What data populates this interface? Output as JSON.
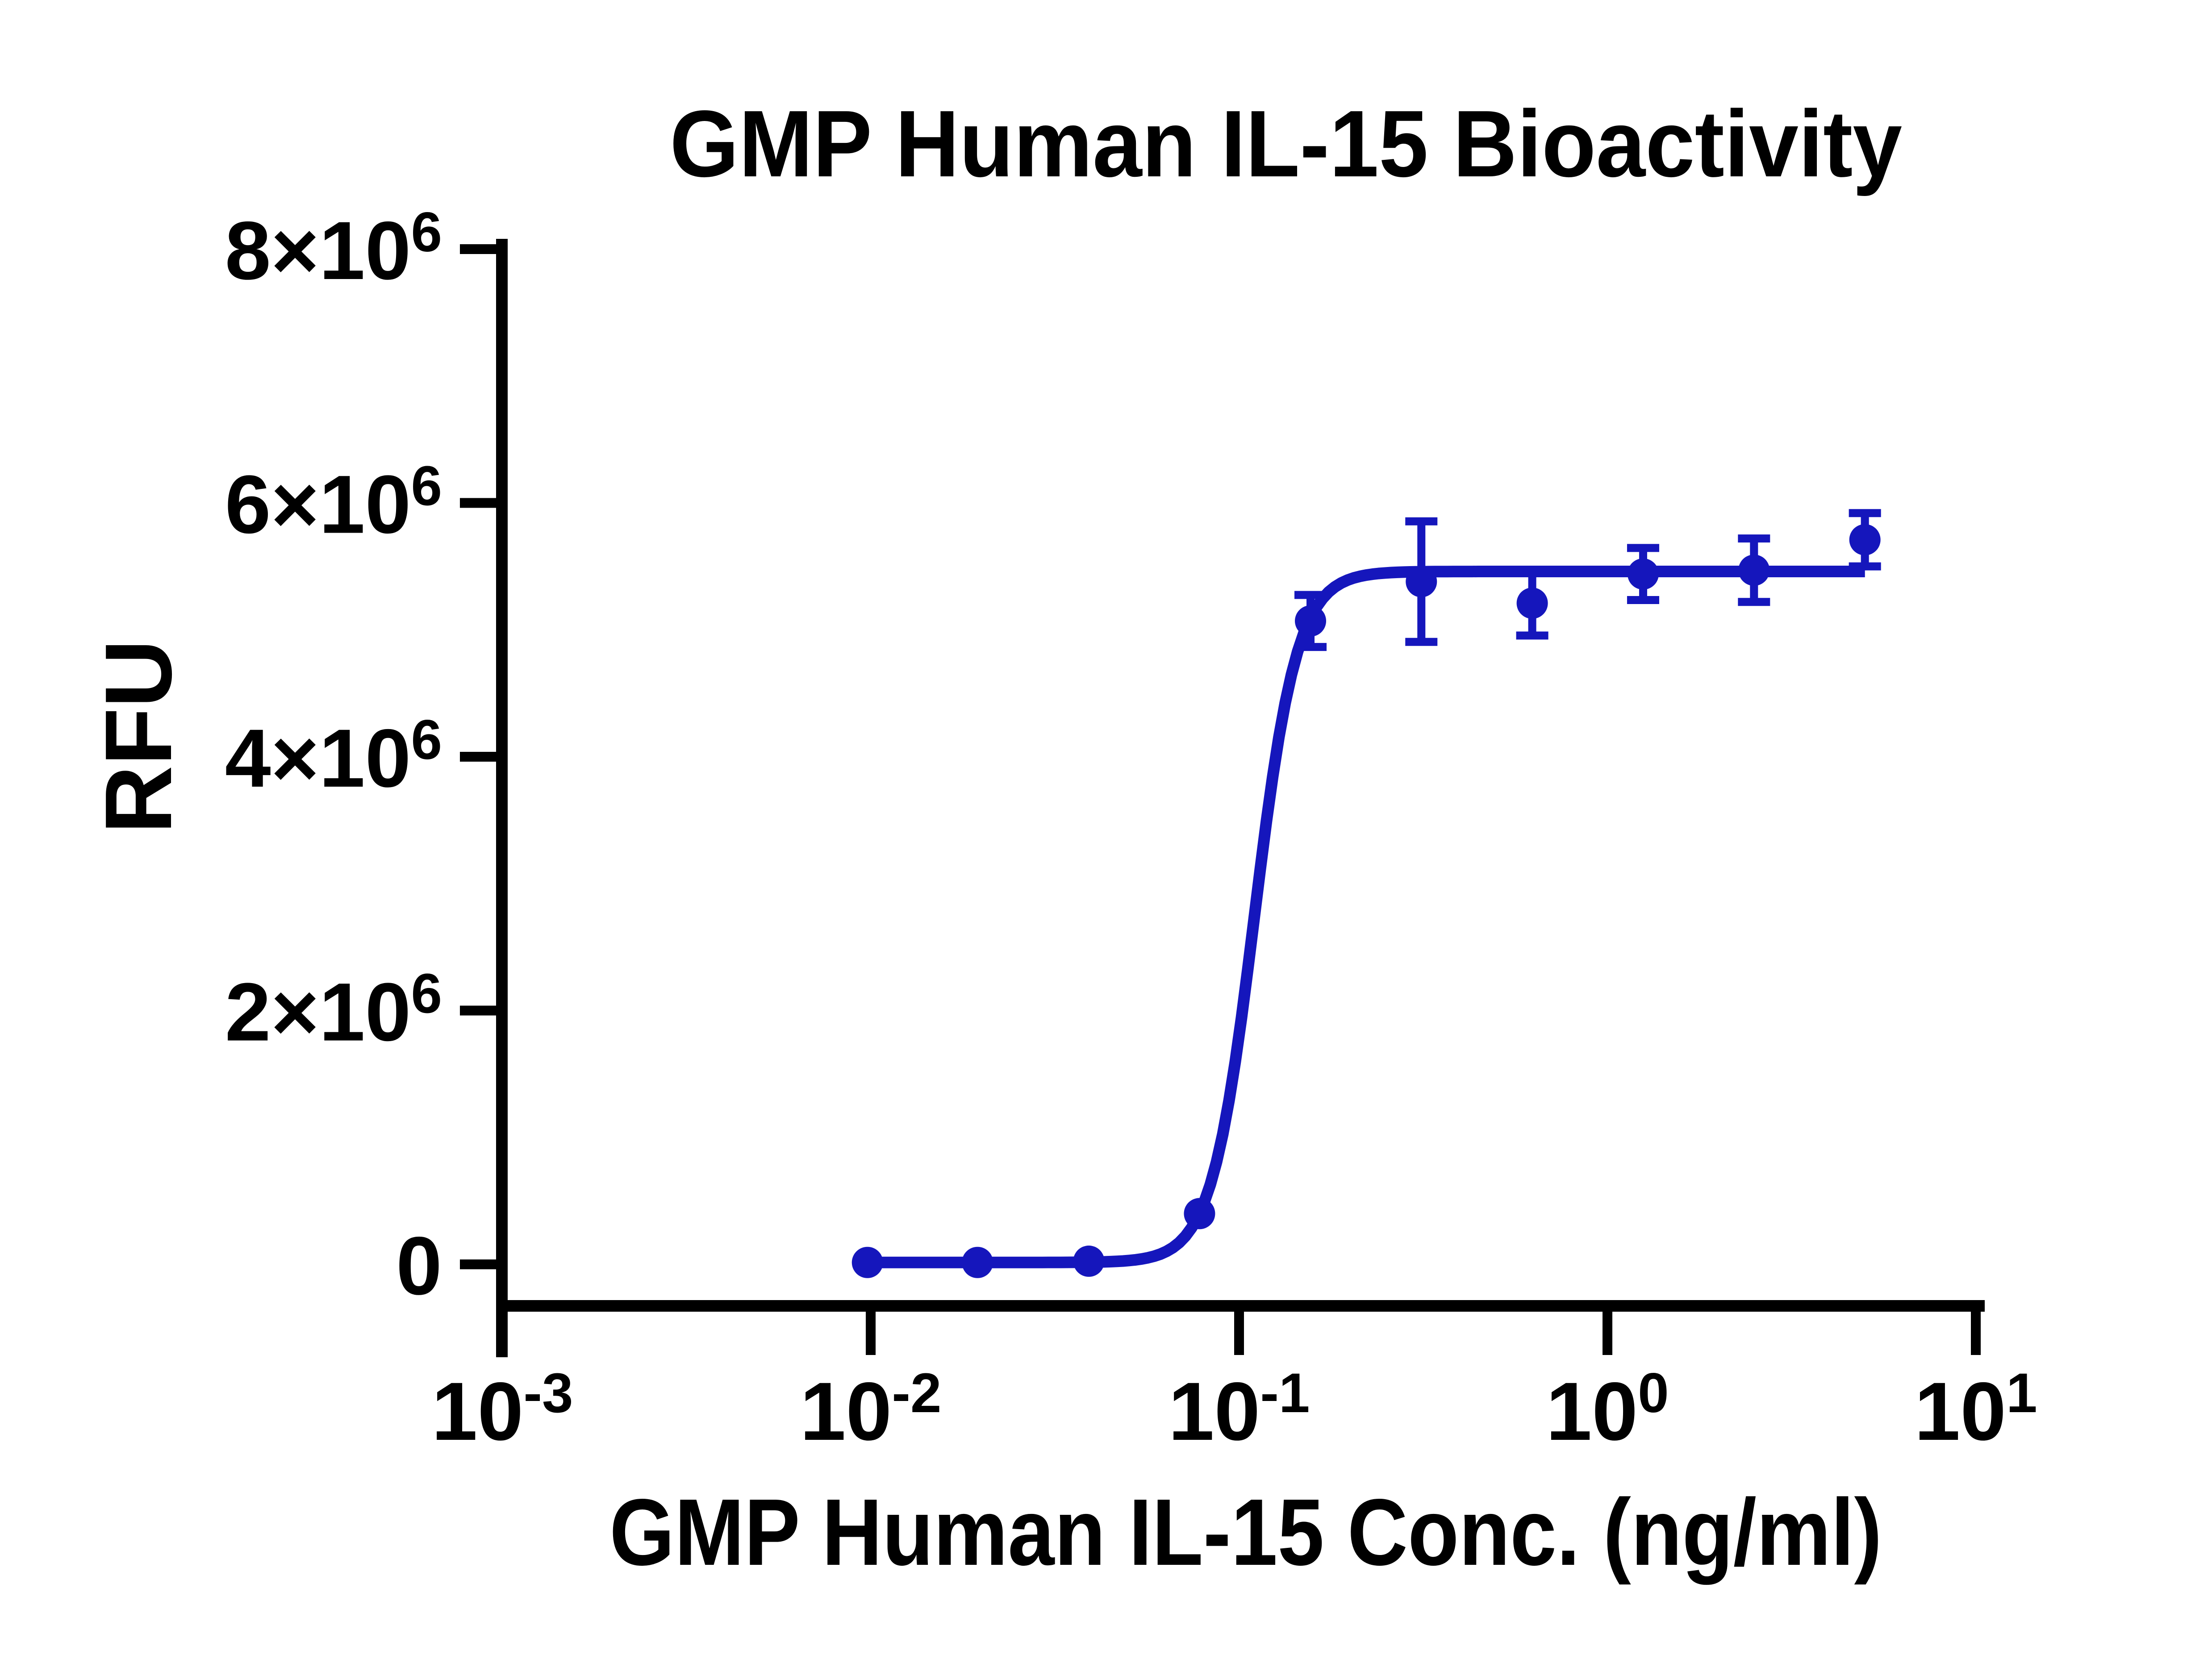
{
  "chart_data": {
    "type": "scatter",
    "title": "GMP Human IL-15 Bioactivity",
    "xlabel": "GMP Human IL-15 Conc. (ng/ml)",
    "ylabel": "RFU",
    "x_scale": "log10",
    "xlim": [
      0.001,
      10
    ],
    "ylim": [
      0,
      8000000
    ],
    "grid": false,
    "legend": "none",
    "x_ticks": [
      {
        "base": "10",
        "exp": "-3",
        "value": 0.001
      },
      {
        "base": "10",
        "exp": "-2",
        "value": 0.01
      },
      {
        "base": "10",
        "exp": "-1",
        "value": 0.1
      },
      {
        "base": "10",
        "exp": "0",
        "value": 1
      },
      {
        "base": "10",
        "exp": "1",
        "value": 10
      }
    ],
    "y_ticks": [
      {
        "base": "8×10",
        "exp": "6",
        "value": 8000000
      },
      {
        "base": "6×10",
        "exp": "6",
        "value": 6000000
      },
      {
        "base": "4×10",
        "exp": "6",
        "value": 4000000
      },
      {
        "base": "2×10",
        "exp": "6",
        "value": 2000000
      },
      {
        "base": "0",
        "exp": "",
        "value": 0
      }
    ],
    "series": [
      {
        "name": "GMP Human IL-15",
        "marker": "circle",
        "color": "#1516BC",
        "points": [
          {
            "conc": 0.0098,
            "rfu": 15000,
            "sd": 0
          },
          {
            "conc": 0.0195,
            "rfu": 15000,
            "sd": 0
          },
          {
            "conc": 0.0391,
            "rfu": 25000,
            "sd": 0
          },
          {
            "conc": 0.0781,
            "rfu": 400000,
            "sd": 0
          },
          {
            "conc": 0.1563,
            "rfu": 5070000,
            "sd": 205000
          },
          {
            "conc": 0.3125,
            "rfu": 5380000,
            "sd": 475000
          },
          {
            "conc": 0.625,
            "rfu": 5210000,
            "sd": 255000
          },
          {
            "conc": 1.25,
            "rfu": 5440000,
            "sd": 205000
          },
          {
            "conc": 2.5,
            "rfu": 5470000,
            "sd": 250000
          },
          {
            "conc": 5,
            "rfu": 5710000,
            "sd": 210000
          }
        ]
      }
    ],
    "fit_curve": {
      "model": "4PL",
      "bottom": 15000,
      "top": 5460000,
      "ec50_ng_ml": 0.11,
      "hill": 7.5,
      "color": "#1516BC"
    }
  }
}
